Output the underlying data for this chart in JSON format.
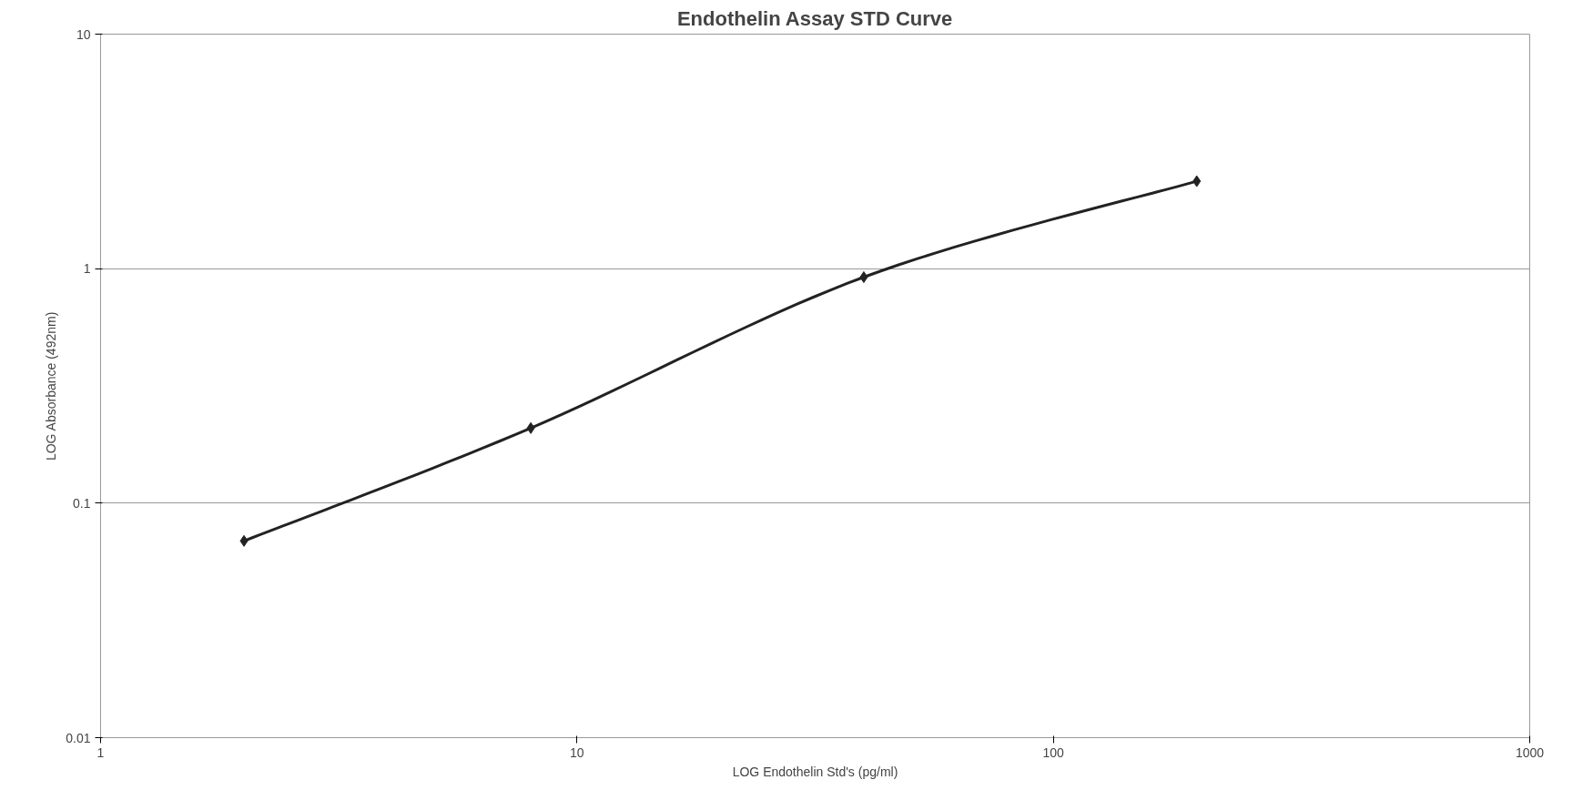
{
  "chart_data": {
    "type": "line",
    "title": "Endothelin Assay STD Curve",
    "xlabel": "LOG Endothelin Std's (pg/ml)",
    "ylabel": "LOG Absorbance (492nm)",
    "x": [
      2,
      8,
      40,
      200
    ],
    "series": [
      {
        "color": "#222222",
        "values": [
          0.069,
          0.209,
          0.92,
          2.36
        ]
      }
    ],
    "log": "xy",
    "xlim": [
      1,
      1000
    ],
    "ylim": [
      0.01,
      10
    ],
    "xticks": [
      1,
      10,
      100,
      1000
    ],
    "yticks": [
      0.01,
      0.1,
      1,
      10
    ],
    "grid": "y",
    "marker": "diamond",
    "line_style": "solid"
  }
}
